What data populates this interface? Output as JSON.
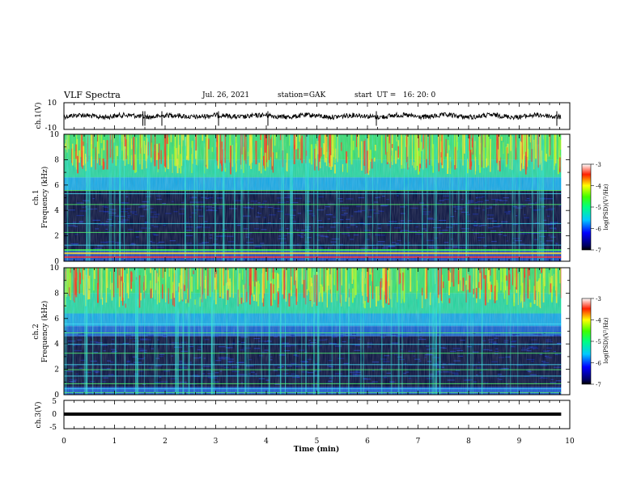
{
  "header": {
    "title": "VLF Spectra",
    "date": "Jul. 26, 2021",
    "station": "station=GAK",
    "start_ut": "start  UT =   16: 20: 0"
  },
  "chart_data": [
    {
      "type": "line",
      "panel": "ch1-waveform",
      "ylabel": "ch.1(V)",
      "ylim": [
        -10,
        10
      ],
      "yticks": [
        "10",
        "-10"
      ],
      "x_end_min": 9.83
    },
    {
      "type": "heatmap",
      "panel": "ch1-spectrogram",
      "ylabel_line1": "ch.1",
      "ylabel_line2": "Frequency (kHz)",
      "ylim": [
        0,
        10
      ],
      "yticks": [
        "0",
        "2",
        "4",
        "6",
        "8",
        "10"
      ],
      "colorbar": {
        "label": "log(PSD)(V²/Hz)",
        "range": [
          -7,
          -3
        ],
        "ticks": [
          "-3",
          "-4",
          "-5",
          "-6",
          "-7"
        ]
      }
    },
    {
      "type": "heatmap",
      "panel": "ch2-spectrogram",
      "ylabel_line1": "ch.2",
      "ylabel_line2": "Frequency (kHz)",
      "ylim": [
        0,
        10
      ],
      "yticks": [
        "0",
        "2",
        "4",
        "6",
        "8",
        "10"
      ],
      "colorbar": {
        "label": "log(PSD)(V²/Hz)",
        "range": [
          -7,
          -3
        ],
        "ticks": [
          "-3",
          "-4",
          "-5",
          "-6",
          "-7"
        ]
      }
    },
    {
      "type": "line",
      "panel": "ch3-waveform",
      "ylabel": "ch.3(V)",
      "ylim": [
        -5,
        5
      ],
      "yticks": [
        "5",
        "0",
        "-5"
      ],
      "constant_value": -0.4
    }
  ],
  "xaxis": {
    "label": "Time (min)",
    "range": [
      0,
      10
    ],
    "ticks": [
      "0",
      "1",
      "2",
      "3",
      "4",
      "5",
      "6",
      "7",
      "8",
      "9",
      "10"
    ]
  },
  "colors": {
    "background": "#ffffff",
    "axes": "#000000",
    "colormap": [
      "#000000",
      "#0000ff",
      "#00ffff",
      "#00ff00",
      "#ffff00",
      "#ff0000",
      "#ffffff"
    ]
  }
}
